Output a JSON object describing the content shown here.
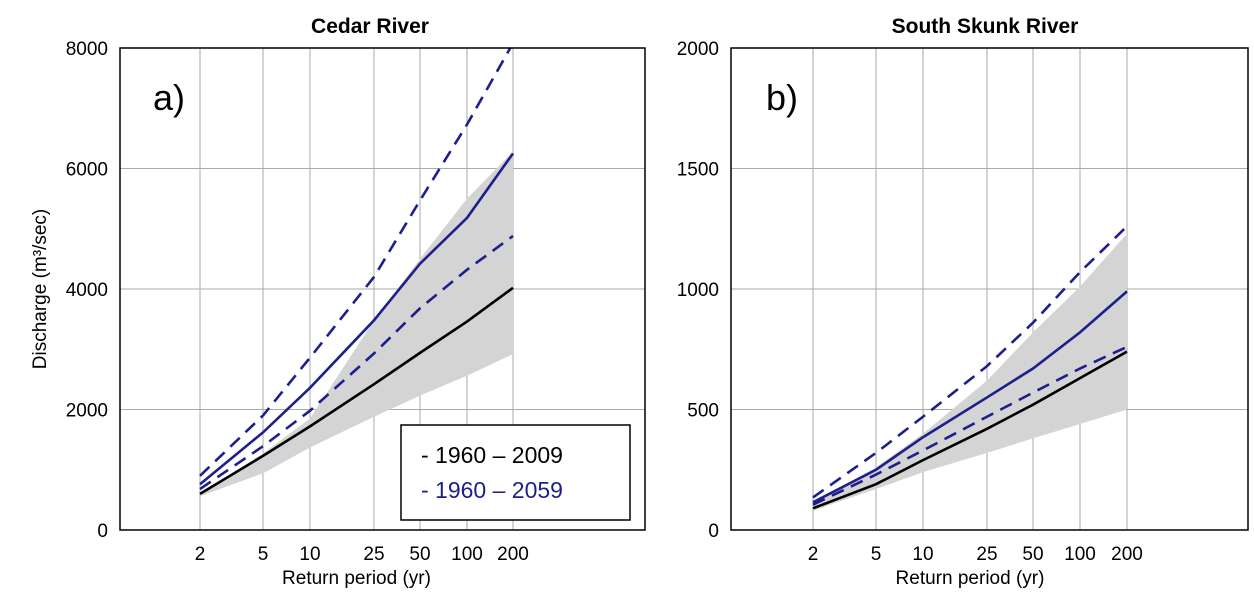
{
  "chart_data": [
    {
      "type": "line",
      "title": "Cedar River",
      "panel_label": "a)",
      "xlabel": "Return period (yr)",
      "ylabel": "Discharge (m³/sec)",
      "x_scale": "log",
      "categories": [
        "2",
        "5",
        "10",
        "25",
        "50",
        "100",
        "200"
      ],
      "ylim": [
        0,
        8000
      ],
      "yticks": [
        "0",
        "2000",
        "4000",
        "6000",
        "8000"
      ],
      "grid": true,
      "legend_placement": "bottom-right",
      "legend": [
        {
          "label": "- 1960 – 2009",
          "color": "#000000"
        },
        {
          "label": "- 1960 – 2059",
          "color": "#1c1f8c"
        }
      ],
      "band": {
        "lower": [
          560,
          940,
          1370,
          1880,
          2230,
          2560,
          2920
        ],
        "upper": [
          600,
          1270,
          1850,
          3480,
          4500,
          5500,
          6280
        ]
      },
      "series": [
        {
          "values": [
            600,
            1230,
            1720,
            2420,
            2940,
            3460,
            4020
          ],
          "color": "#000000",
          "dash": false
        },
        {
          "values": [
            760,
            1620,
            2360,
            3480,
            4420,
            5180,
            6250
          ],
          "color": "#1c1f8c",
          "dash": false
        },
        {
          "values": [
            900,
            1900,
            2860,
            4200,
            5470,
            6730,
            8080
          ],
          "color": "#1c1f8c",
          "dash": true
        },
        {
          "values": [
            680,
            1390,
            1980,
            2930,
            3680,
            4320,
            4880
          ],
          "color": "#1c1f8c",
          "dash": true
        }
      ]
    },
    {
      "type": "line",
      "title": "South Skunk River",
      "panel_label": "b)",
      "xlabel": "Return period (yr)",
      "ylabel": "",
      "x_scale": "log",
      "categories": [
        "2",
        "5",
        "10",
        "25",
        "50",
        "100",
        "200"
      ],
      "ylim": [
        0,
        2000
      ],
      "yticks": [
        "0",
        "500",
        "1000",
        "1500",
        "2000"
      ],
      "grid": true,
      "band": {
        "lower": [
          80,
          170,
          240,
          320,
          380,
          440,
          500
        ],
        "upper": [
          110,
          260,
          400,
          620,
          820,
          1010,
          1230
        ]
      },
      "series": [
        {
          "values": [
            90,
            190,
            290,
            420,
            520,
            630,
            740
          ],
          "color": "#000000",
          "dash": false
        },
        {
          "values": [
            115,
            250,
            385,
            550,
            670,
            820,
            990
          ],
          "color": "#1c1f8c",
          "dash": false
        },
        {
          "values": [
            135,
            320,
            470,
            680,
            860,
            1070,
            1260
          ],
          "color": "#1c1f8c",
          "dash": true
        },
        {
          "values": [
            105,
            230,
            330,
            470,
            570,
            670,
            760
          ],
          "color": "#1c1f8c",
          "dash": true
        }
      ]
    }
  ]
}
